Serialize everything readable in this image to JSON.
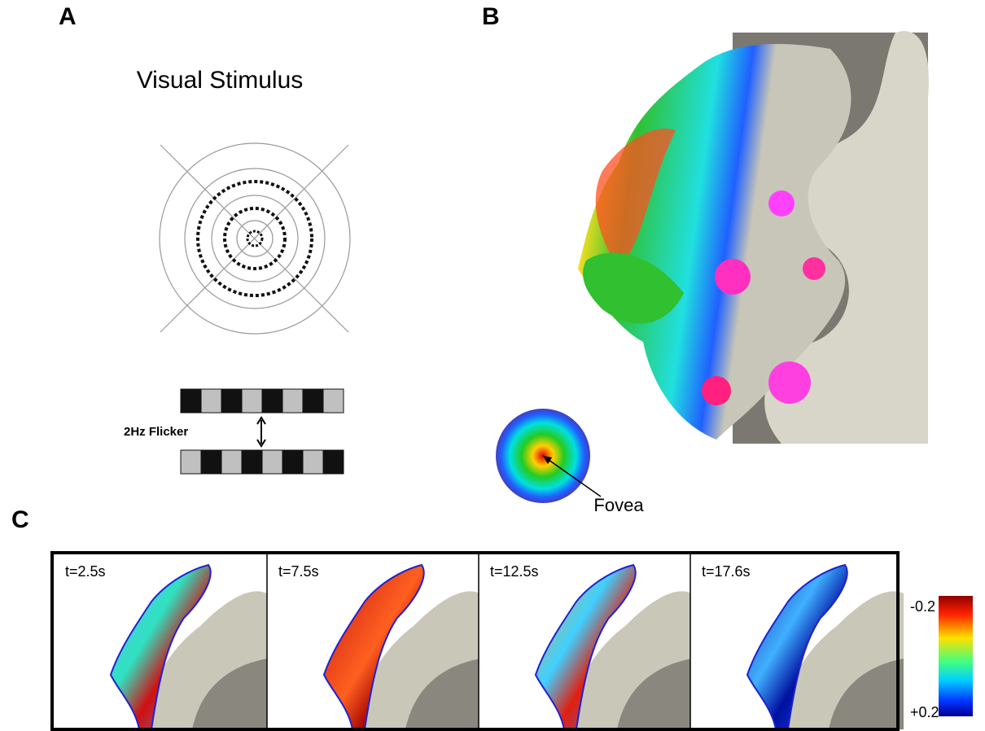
{
  "panels": {
    "A": {
      "label": "A",
      "title": "Visual Stimulus",
      "flicker": "2Hz Flicker"
    },
    "B": {
      "label": "B",
      "fovea": "Fovea"
    },
    "C": {
      "label": "C",
      "frames": [
        "t=2.5s",
        "t=7.5s",
        "t=12.5s",
        "t=17.6s"
      ],
      "colorbar": {
        "top": "-0.2",
        "bottom": "+0.2"
      }
    }
  }
}
